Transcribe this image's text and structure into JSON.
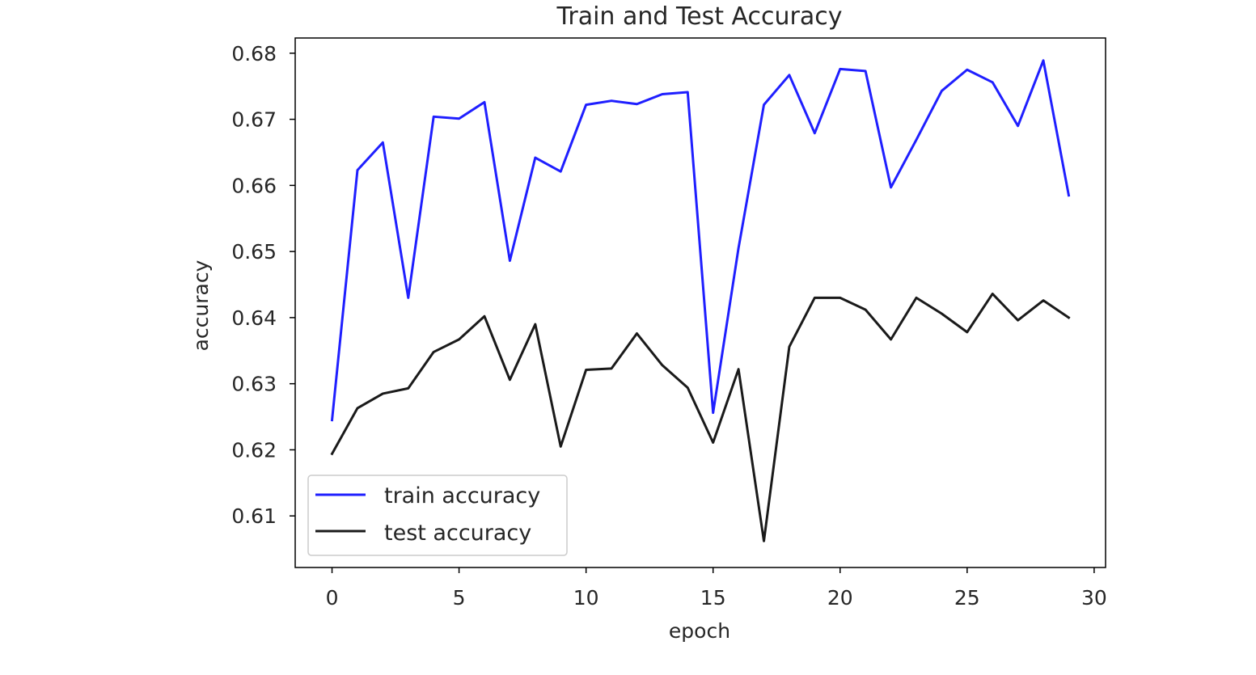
{
  "chart_data": {
    "type": "line",
    "title": "Train and Test Accuracy",
    "xlabel": "epoch",
    "ylabel": "accuracy",
    "xlim": [
      -1.45,
      30.45
    ],
    "ylim": [
      0.6022,
      0.6823
    ],
    "xticks": [
      0,
      5,
      10,
      15,
      20,
      25,
      30
    ],
    "yticks": [
      0.61,
      0.62,
      0.63,
      0.64,
      0.65,
      0.66,
      0.67,
      0.68
    ],
    "xtick_labels": [
      "0",
      "5",
      "10",
      "15",
      "20",
      "25",
      "30"
    ],
    "ytick_labels": [
      "0.61",
      "0.62",
      "0.63",
      "0.64",
      "0.65",
      "0.66",
      "0.67",
      "0.68"
    ],
    "grid": false,
    "legend_position": "lower-left",
    "x": [
      0,
      1,
      2,
      3,
      4,
      5,
      6,
      7,
      8,
      9,
      10,
      11,
      12,
      13,
      14,
      15,
      16,
      17,
      18,
      19,
      20,
      21,
      22,
      23,
      24,
      25,
      26,
      27,
      28,
      29
    ],
    "series": [
      {
        "name": "train accuracy",
        "color": "#1f1fff",
        "values": [
          0.6245,
          0.6623,
          0.6665,
          0.643,
          0.6704,
          0.6701,
          0.6726,
          0.6486,
          0.6642,
          0.6621,
          0.6722,
          0.6728,
          0.6723,
          0.6738,
          0.6741,
          0.6256,
          0.6505,
          0.6722,
          0.6767,
          0.6679,
          0.6776,
          0.6773,
          0.6597,
          0.6669,
          0.6743,
          0.6775,
          0.6756,
          0.669,
          0.6789,
          0.6585
        ]
      },
      {
        "name": "test accuracy",
        "color": "#1a1a1a",
        "values": [
          0.6194,
          0.6263,
          0.6285,
          0.6293,
          0.6348,
          0.6367,
          0.6402,
          0.6306,
          0.639,
          0.6205,
          0.6321,
          0.6323,
          0.6376,
          0.6328,
          0.6294,
          0.6211,
          0.6322,
          0.6062,
          0.6356,
          0.643,
          0.643,
          0.6412,
          0.6367,
          0.643,
          0.6406,
          0.6378,
          0.6436,
          0.6396,
          0.6426,
          0.64
        ]
      }
    ]
  }
}
